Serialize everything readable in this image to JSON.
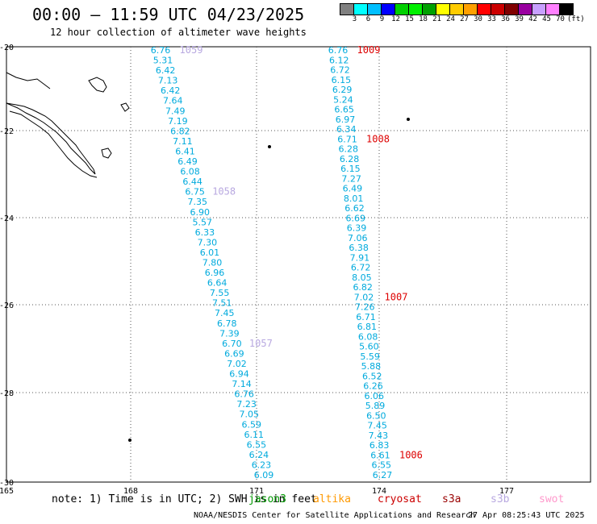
{
  "title": "00:00 – 11:59 UTC 04/23/2025",
  "subtitle": "12 hour collection of altimeter wave heights",
  "colorbar": {
    "colors": [
      "#808080",
      "#00ffff",
      "#00bfff",
      "#0000ff",
      "#00d000",
      "#00f000",
      "#00a000",
      "#ffff00",
      "#ffcc00",
      "#ffa000",
      "#ff0000",
      "#cc0000",
      "#800000",
      "#9900a0",
      "#c8a0ff",
      "#ff80ff",
      "#000000"
    ],
    "labels": [
      "3",
      "6",
      "9",
      "12",
      "15",
      "18",
      "21",
      "24",
      "27",
      "30",
      "33",
      "36",
      "39",
      "42",
      "45",
      "70"
    ],
    "unit": "(ft)"
  },
  "axes": {
    "lon_ticks": [
      "165",
      "168",
      "171",
      "174",
      "177"
    ],
    "lat_ticks": [
      "-20",
      "-22",
      "-24",
      "-26",
      "-28",
      "-30"
    ]
  },
  "tracks": [
    {
      "values": [
        "6.76",
        "5.31",
        "6.42",
        "7.13",
        "6.42",
        "7.64",
        "7.49",
        "7.19",
        "6.82",
        "7.11",
        "6.41",
        "6.49",
        "6.08",
        "6.44",
        "6.75",
        "7.35",
        "6.90",
        "5.57",
        "6.33",
        "7.30",
        "6.01",
        "7.80",
        "6.96",
        "6.64",
        "7.55",
        "7.51",
        "7.45",
        "6.78",
        "7.39",
        "6.70",
        "6.69",
        "7.02",
        "6.94",
        "7.14",
        "6.76",
        "7.23",
        "7.05",
        "6.59",
        "6.11",
        "6.55",
        "6.24",
        "6.23",
        "6.09"
      ],
      "times": [
        {
          "label": "1059",
          "color": "#b8a8e0"
        },
        {
          "label": "1058",
          "color": "#b8a8e0"
        },
        {
          "label": "1057",
          "color": "#b8a8e0"
        }
      ]
    },
    {
      "values": [
        "6.76",
        "6.12",
        "6.72",
        "6.15",
        "6.29",
        "5.24",
        "6.65",
        "6.97",
        "6.34",
        "6.71",
        "6.28",
        "6.28",
        "6.15",
        "7.27",
        "6.49",
        "8.01",
        "6.62",
        "6.69",
        "6.39",
        "7.06",
        "6.38",
        "7.91",
        "6.72",
        "8.05",
        "6.82",
        "7.02",
        "7.26",
        "6.71",
        "6.81",
        "6.08",
        "5.60",
        "5.59",
        "5.88",
        "6.52",
        "6.26",
        "6.06",
        "5.89",
        "6.50",
        "7.45",
        "7.43",
        "6.83",
        "6.61",
        "6.55",
        "6.27"
      ],
      "times": [
        {
          "label": "1009",
          "color": "#dd0000"
        },
        {
          "label": "1008",
          "color": "#dd0000"
        },
        {
          "label": "1007",
          "color": "#dd0000"
        },
        {
          "label": "1006",
          "color": "#dd0000"
        }
      ]
    }
  ],
  "value_color": "#00aadd",
  "footer": {
    "note": "note: 1) Time is in UTC; 2) SWH is in feet",
    "satellites": [
      {
        "name": "jason3",
        "color": "#009900"
      },
      {
        "name": "altika",
        "color": "#ff9900"
      },
      {
        "name": "cryosat",
        "color": "#cc0000"
      },
      {
        "name": "s3a",
        "color": "#990000"
      },
      {
        "name": "s3b",
        "color": "#b8a8e0"
      },
      {
        "name": "swot",
        "color": "#ff99cc"
      }
    ],
    "credit": "NOAA/NESDIS Center for Satellite Applications and Research",
    "timestamp": "27 Apr 08:25:43 UTC 2025"
  }
}
